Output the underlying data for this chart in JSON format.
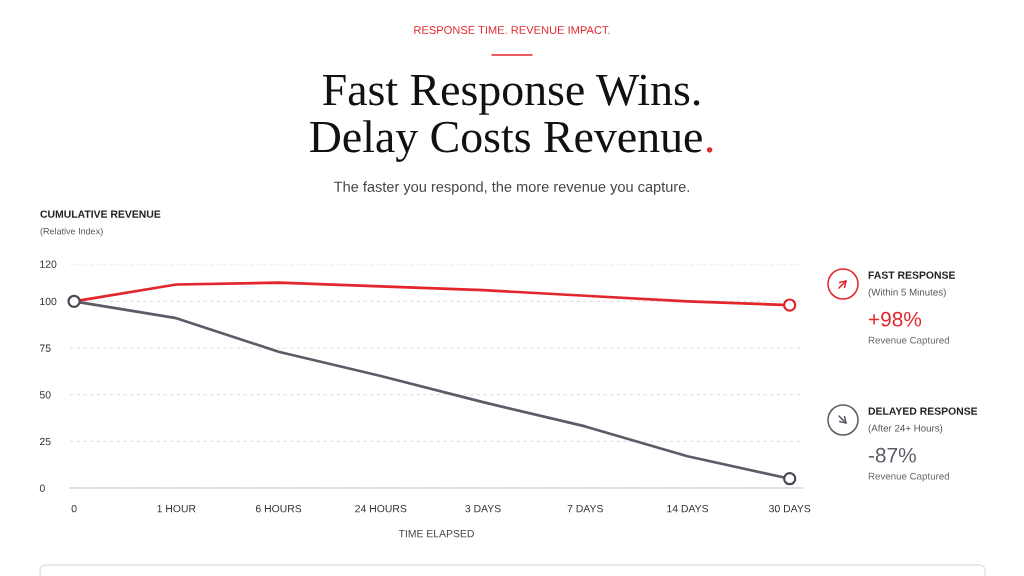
{
  "chart_data": {
    "type": "line",
    "title": "Fast Response Wins.\nDelay Costs Revenue.",
    "subtitle": "The faster you respond, the more revenue you capture.",
    "xlabel": "TIME ELAPSED",
    "ylabel": "CUMULATIVE REVENUE\n(Relative Index)",
    "categories": [
      "0",
      "1 HOUR",
      "6 HOURS",
      "24 HOURS",
      "3 DAYS",
      "7 DAYS",
      "14 DAYS",
      "30 DAYS"
    ],
    "series": [
      {
        "name": "FAST RESPONSE",
        "color": "#e3262b",
        "values": [
          100,
          109,
          110,
          108,
          106,
          103,
          100,
          98
        ]
      },
      {
        "name": "DELAYED RESPONSE",
        "color": "#5c5c68",
        "values": [
          100,
          91,
          73,
          60,
          46,
          33,
          17,
          5
        ]
      },
      {
        "type": "scatter",
        "color": "#e3262b",
        "x": [
          "30 DAYS"
        ],
        "values": [
          98
        ],
        "marker": "circle"
      },
      {
        "type": "scatter",
        "color": "#4a4a54",
        "x": [
          "0",
          "30 DAYS"
        ],
        "values": [
          100,
          5
        ],
        "marker": "circle"
      }
    ],
    "ylim": [
      0,
      120
    ],
    "yticks": [
      0,
      25,
      50,
      75,
      100,
      120
    ],
    "grid": "y",
    "legend": "right",
    "line_style": "solid",
    "annotations": [
      "RESPONSE TIME. REVENUE IMPACT.",
      "(Within 5 Minutes)",
      "+98%",
      "Revenue Captured",
      "(After 24+ Hours)",
      "-87%",
      "Revenue Captured"
    ]
  }
}
